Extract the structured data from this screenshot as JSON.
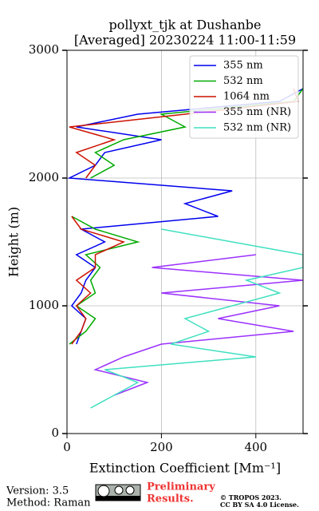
{
  "chart_data": {
    "type": "line",
    "title": [
      "pollyxt_tjk at Dushanbe",
      "[Averaged] 20230224 11:00-11:59"
    ],
    "xlabel": "Extinction Coefficient [Mm⁻¹]",
    "ylabel": "Height (m)",
    "xlim": [
      0,
      500
    ],
    "ylim": [
      0,
      3000
    ],
    "xticks": [
      0,
      200,
      400
    ],
    "yticks": [
      0,
      1000,
      2000,
      3000
    ],
    "grid": true,
    "legend": "upper right",
    "y": [
      200,
      300,
      400,
      500,
      600,
      700,
      800,
      900,
      1000,
      1100,
      1200,
      1300,
      1400,
      1500,
      1600,
      1700,
      1800,
      1900,
      2000,
      2100,
      2200,
      2300,
      2400,
      2500,
      2600,
      2700,
      2800
    ],
    "series": [
      {
        "name": "355 nm",
        "color": "#0000ee",
        "values": [
          null,
          null,
          null,
          null,
          null,
          20,
          30,
          40,
          10,
          30,
          40,
          60,
          20,
          80,
          30,
          320,
          250,
          350,
          5,
          60,
          80,
          200,
          20,
          150,
          450,
          500,
          null
        ]
      },
      {
        "name": "532 nm",
        "color": "#00aa00",
        "values": [
          null,
          null,
          null,
          null,
          null,
          5,
          40,
          60,
          20,
          60,
          50,
          70,
          40,
          150,
          60,
          10,
          null,
          null,
          50,
          100,
          60,
          120,
          250,
          200,
          480,
          500,
          null
        ]
      },
      {
        "name": "1064 nm",
        "color": "#cc1100",
        "values": [
          null,
          null,
          null,
          null,
          null,
          10,
          30,
          40,
          20,
          50,
          20,
          60,
          60,
          120,
          30,
          10,
          null,
          null,
          40,
          60,
          20,
          100,
          5,
          250,
          490,
          480,
          null
        ]
      },
      {
        "name": "355 nm (NR)",
        "color": "#9b30ff",
        "values": [
          null,
          100,
          170,
          60,
          120,
          200,
          480,
          320,
          450,
          200,
          500,
          180,
          400,
          null,
          null,
          null,
          null,
          null,
          null,
          null,
          null,
          null,
          null,
          null,
          null,
          null,
          null
        ]
      },
      {
        "name": "532 nm (NR)",
        "color": "#40e0c0",
        "values": [
          50,
          100,
          150,
          80,
          400,
          220,
          300,
          250,
          350,
          450,
          380,
          500,
          500,
          350,
          200,
          null,
          null,
          null,
          null,
          null,
          null,
          null,
          null,
          null,
          null,
          null,
          null
        ]
      }
    ]
  },
  "footer": {
    "version": "Version: 3.5",
    "method": "Method: Raman",
    "preliminary": [
      "Preliminary",
      "Results."
    ],
    "copyright": [
      "© TROPOS 2023.",
      "CC BY SA 4.0 License."
    ]
  }
}
